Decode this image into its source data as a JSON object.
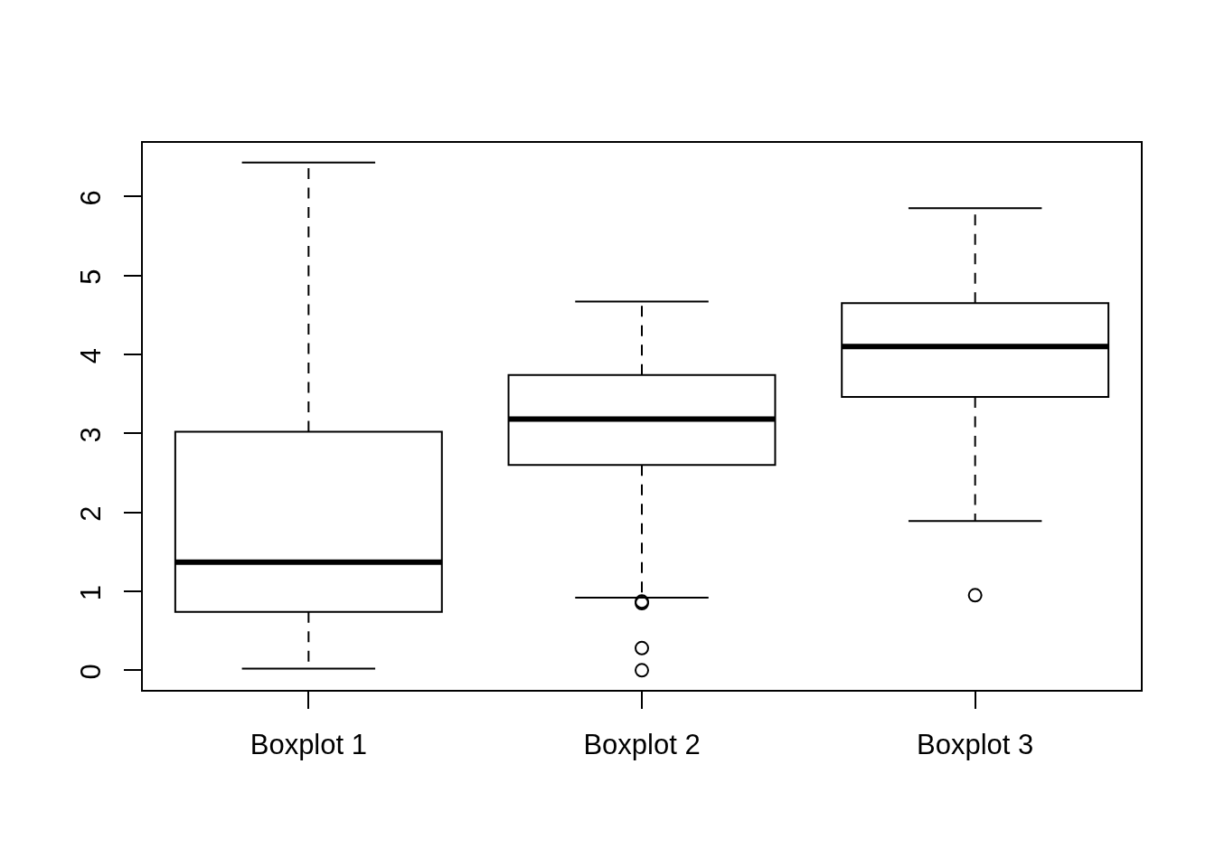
{
  "chart_data": {
    "type": "box",
    "categories": [
      "Boxplot 1",
      "Boxplot 2",
      "Boxplot 3"
    ],
    "boxes": [
      {
        "low": 0.02,
        "q1": 0.74,
        "median": 1.37,
        "q3": 3.02,
        "high": 6.43
      },
      {
        "low": 0.92,
        "q1": 2.6,
        "median": 3.18,
        "q3": 3.74,
        "high": 4.67,
        "outliers": [
          0.87,
          0.85,
          0.28,
          0.0
        ]
      },
      {
        "low": 1.89,
        "q1": 3.46,
        "median": 4.1,
        "q3": 4.65,
        "high": 5.85,
        "outliers": [
          0.95
        ]
      }
    ],
    "color": "#000000",
    "marker": "circle",
    "ylim": [
      -0.26,
      6.69
    ],
    "yticks": [
      0,
      1,
      2,
      3,
      4,
      5,
      6
    ]
  }
}
